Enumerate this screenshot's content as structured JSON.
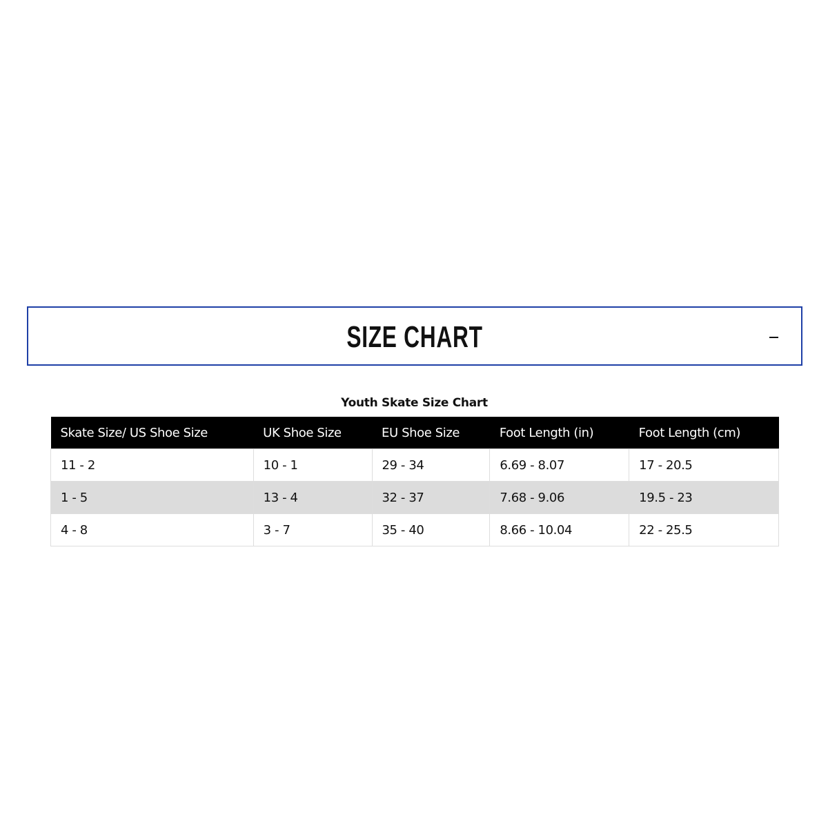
{
  "accordion": {
    "title": "SIZE CHART",
    "toggle_icon": "minus-icon",
    "border_color": "#1e3fa6"
  },
  "table": {
    "caption": "Youth Skate Size Chart",
    "headers": [
      "Skate Size/ US Shoe Size",
      "UK Shoe Size",
      "EU Shoe Size",
      "Foot Length (in)",
      "Foot Length (cm)"
    ],
    "rows": [
      [
        "11 - 2",
        "10 - 1",
        "29 - 34",
        "6.69 - 8.07",
        "17 - 20.5"
      ],
      [
        "1 - 5",
        "13 - 4",
        "32 - 37",
        "7.68 - 9.06",
        "19.5 - 23"
      ],
      [
        "4 - 8",
        "3 - 7",
        "35 - 40",
        "8.66 - 10.04",
        "22 - 25.5"
      ]
    ]
  }
}
